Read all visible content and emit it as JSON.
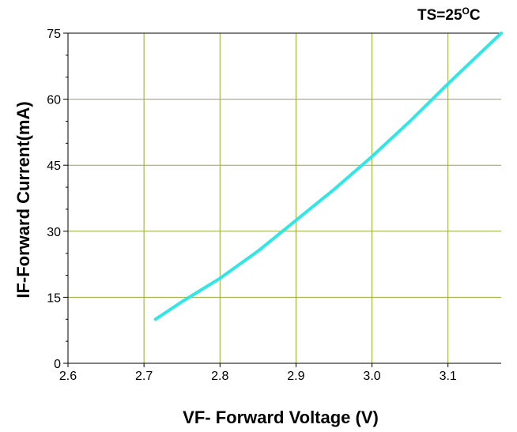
{
  "chart_data": {
    "type": "line",
    "title": "",
    "xlabel": "VF- Forward Voltage  (V)",
    "ylabel": "IF-Forward Current(mA)",
    "xlim": [
      2.6,
      3.17
    ],
    "ylim": [
      0,
      75
    ],
    "xticks": [
      2.6,
      2.7,
      2.8,
      2.9,
      3.0,
      3.1
    ],
    "xtick_labels": [
      "2.6",
      "2.7",
      "2.8",
      "2.9",
      "3.0",
      "3.1"
    ],
    "yticks": [
      0,
      15,
      30,
      45,
      60,
      75
    ],
    "ytick_labels": [
      "0",
      "15",
      "30",
      "45",
      "60",
      "75"
    ],
    "grid": true,
    "annotation": {
      "text": "TS=25",
      "superscript": "O",
      "suffix": "C"
    },
    "colors": {
      "line": "#33e6e6",
      "grid": "#99a833",
      "axis": "#000000"
    },
    "series": [
      {
        "x": [
          2.715,
          2.75,
          2.8,
          2.85,
          2.9,
          2.95,
          3.0,
          3.05,
          3.1,
          3.17
        ],
        "y": [
          10,
          14,
          19.3,
          25.5,
          32.5,
          39.5,
          47,
          55,
          63.5,
          75
        ]
      }
    ]
  }
}
